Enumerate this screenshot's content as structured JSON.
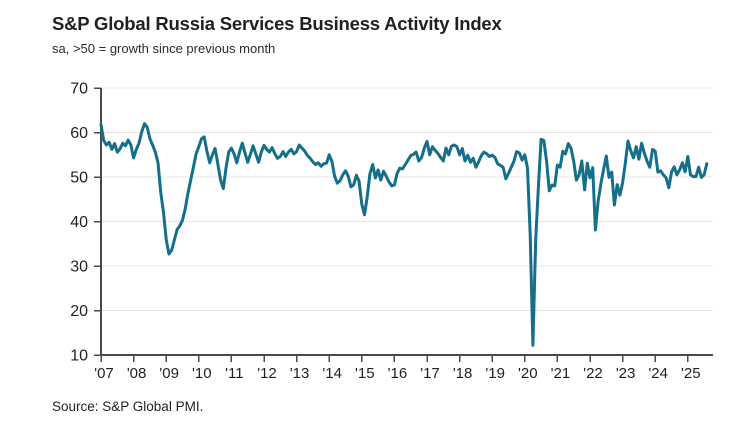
{
  "header": {
    "title": "S&P Global Russia Services Business Activity Index",
    "subtitle": "sa, >50 = growth since previous month"
  },
  "footer": {
    "source": "Source: S&P Global PMI."
  },
  "colors": {
    "line": "#136f8a",
    "axis": "#4a4a4c",
    "grid": "#e9e4e4",
    "text": "#231f20"
  },
  "chart_data": {
    "type": "line",
    "title": "S&P Global Russia Services Business Activity Index",
    "subtitle": "sa, >50 = growth since previous month",
    "frequency": "monthly",
    "x_start": "2007-01",
    "x_end": "2025-08",
    "x_tick_labels": [
      "'07",
      "'08",
      "'09",
      "'10",
      "'11",
      "'12",
      "'13",
      "'14",
      "'15",
      "'16",
      "'17",
      "'18",
      "'19",
      "'20",
      "'21",
      "'22",
      "'23",
      "'24",
      "'25"
    ],
    "y_ticks": [
      10,
      20,
      30,
      40,
      50,
      60,
      70
    ],
    "ylim": [
      10,
      70
    ],
    "grid": "horizontal",
    "legend": "none",
    "series": [
      {
        "name": "Services Business Activity Index",
        "values": [
          61.8,
          58.2,
          57.2,
          57.8,
          56.2,
          57.5,
          55.6,
          56.3,
          57.6,
          57.0,
          58.3,
          57.2,
          54.3,
          56.2,
          57.6,
          60.2,
          62.0,
          61.2,
          58.6,
          57.2,
          55.6,
          53.2,
          46.5,
          42.0,
          36.0,
          32.7,
          33.5,
          35.8,
          38.2,
          39.0,
          40.3,
          42.8,
          46.3,
          49.2,
          52.2,
          55.2,
          56.8,
          58.6,
          59.0,
          55.8,
          53.2,
          55.0,
          56.4,
          53.0,
          49.4,
          47.4,
          52.0,
          55.6,
          56.5,
          55.2,
          53.2,
          55.6,
          57.6,
          55.4,
          53.3,
          55.1,
          57.0,
          55.2,
          53.3,
          55.6,
          57.1,
          56.2,
          55.6,
          56.6,
          55.2,
          54.2,
          54.6,
          55.7,
          54.6,
          55.6,
          56.2,
          55.2,
          55.7,
          57.2,
          56.5,
          55.8,
          54.8,
          54.2,
          53.4,
          52.8,
          53.2,
          52.4,
          53.0,
          53.1,
          55.0,
          53.5,
          50.2,
          48.6,
          49.2,
          50.5,
          51.4,
          50.2,
          47.8,
          48.2,
          50.4,
          49.0,
          43.9,
          41.5,
          45.5,
          50.7,
          52.8,
          49.8,
          51.6,
          49.3,
          51.3,
          50.2,
          48.9,
          48.0,
          48.2,
          50.8,
          52.0,
          51.8,
          52.8,
          53.8,
          54.8,
          55.1,
          55.6,
          53.6,
          54.4,
          56.5,
          58.0,
          55.0,
          56.8,
          56.0,
          55.3,
          54.4,
          53.6,
          56.5,
          55.0,
          56.9,
          57.2,
          56.8,
          55.0,
          56.4,
          53.6,
          54.9,
          53.3,
          54.2,
          52.2,
          53.4,
          54.8,
          55.6,
          55.2,
          54.6,
          54.9,
          54.4,
          53.0,
          52.6,
          52.2,
          49.6,
          50.8,
          52.2,
          53.5,
          55.7,
          55.4,
          53.8,
          55.0,
          52.0,
          37.1,
          12.2,
          35.9,
          47.8,
          58.5,
          58.2,
          53.7,
          46.9,
          48.2,
          48.0,
          52.7,
          52.2,
          55.8,
          55.2,
          57.5,
          56.5,
          53.5,
          49.3,
          50.5,
          53.6,
          47.1,
          53.1,
          49.8,
          52.1,
          38.1,
          44.5,
          48.5,
          51.7,
          54.7,
          49.9,
          51.1,
          43.7,
          48.3,
          45.9,
          48.7,
          53.1,
          58.1,
          55.9,
          54.3,
          56.8,
          54.0,
          57.6,
          55.4,
          53.6,
          52.2,
          56.2,
          55.8,
          51.1,
          51.4,
          50.5,
          49.8,
          47.6,
          51.1,
          52.3,
          50.5,
          51.6,
          53.2,
          51.2,
          54.6,
          50.5,
          50.1,
          50.1,
          52.2,
          49.9,
          50.5,
          53.0
        ]
      }
    ]
  }
}
